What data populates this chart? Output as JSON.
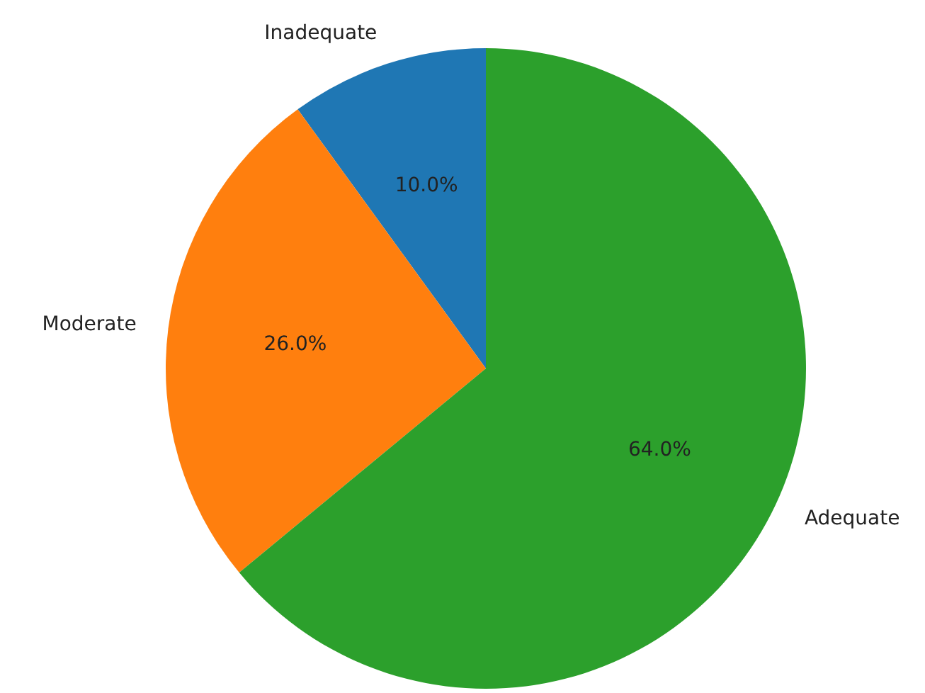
{
  "chart_data": {
    "type": "pie",
    "categories": [
      "Inadequate",
      "Moderate",
      "Adequate"
    ],
    "values": [
      10,
      26,
      64
    ],
    "value_labels": [
      "10.0%",
      "26.0%",
      "64.0%"
    ],
    "colors": [
      "#1f77b4",
      "#ff7f0e",
      "#2ca02c"
    ],
    "legend": false
  }
}
